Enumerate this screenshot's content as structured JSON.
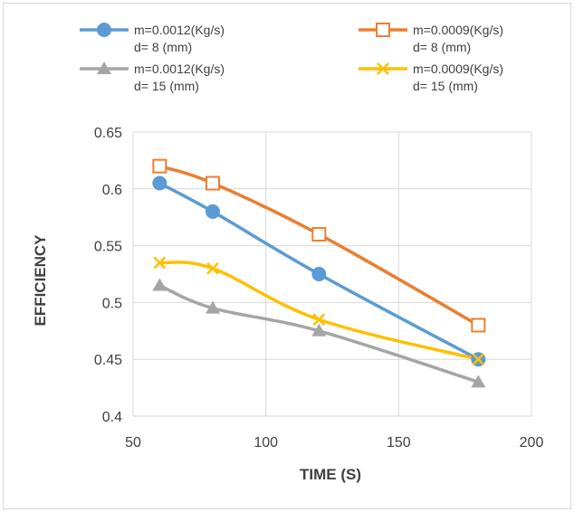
{
  "chart_data": {
    "type": "line",
    "title": "",
    "xlabel": "TIME (S)",
    "ylabel": "EFFICIENCY",
    "xlim": [
      50,
      200
    ],
    "ylim": [
      0.4,
      0.65
    ],
    "xticks": [
      50,
      100,
      150,
      200
    ],
    "yticks": [
      0.4,
      0.45,
      0.5,
      0.55,
      0.6,
      0.65
    ],
    "xtick_labels": [
      "50",
      "100",
      "150",
      "200"
    ],
    "ytick_labels": [
      "0.4",
      "0.45",
      "0.5",
      "0.55",
      "0.6",
      "0.65"
    ],
    "grid": true,
    "legend_position": "top",
    "series": [
      {
        "name_line1": "m=0.0012(Kg/s)",
        "name_line2": "d= 8 (mm)",
        "color": "#5b9bd5",
        "marker": "circle",
        "x": [
          60,
          80,
          120,
          180
        ],
        "y": [
          0.605,
          0.58,
          0.525,
          0.45
        ]
      },
      {
        "name_line1": "m=0.0009(Kg/s)",
        "name_line2": "d= 8 (mm)",
        "color": "#ed7d31",
        "marker": "square-open",
        "x": [
          60,
          80,
          120,
          180
        ],
        "y": [
          0.62,
          0.605,
          0.56,
          0.48
        ]
      },
      {
        "name_line1": "m=0.0012(Kg/s)",
        "name_line2": "d= 15 (mm)",
        "color": "#a5a5a5",
        "marker": "triangle",
        "x": [
          60,
          80,
          120,
          180
        ],
        "y": [
          0.515,
          0.495,
          0.475,
          0.43
        ]
      },
      {
        "name_line1": "m=0.0009(Kg/s)",
        "name_line2": "d= 15 (mm)",
        "color": "#ffc000",
        "marker": "x",
        "x": [
          60,
          80,
          120,
          180
        ],
        "y": [
          0.535,
          0.53,
          0.485,
          0.45
        ]
      }
    ]
  }
}
